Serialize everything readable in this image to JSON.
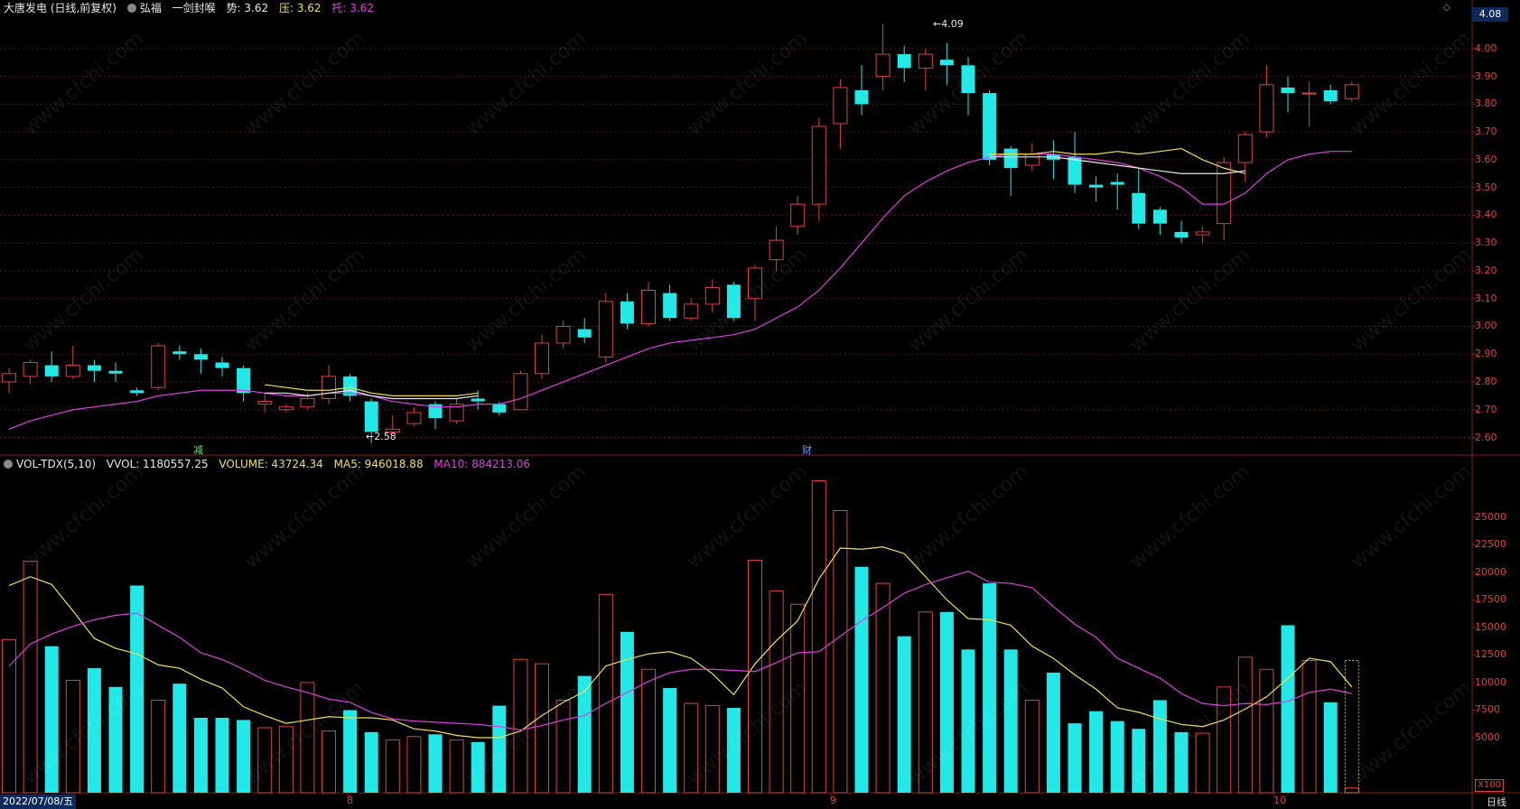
{
  "header": {
    "stock": "大唐发电 (日线,前复权)",
    "indicator": "弘福",
    "signal": "一剑封喉",
    "trend_label": "势:",
    "trend_value": "3.62",
    "pressure_label": "压:",
    "pressure_value": "3.62",
    "support_label": "托:",
    "support_value": "3.62"
  },
  "price_panel": {
    "current_price": "4.08",
    "y_labels": [
      "4.00",
      "3.90",
      "3.80",
      "3.70",
      "3.60",
      "3.50",
      "3.40",
      "3.30",
      "3.20",
      "3.10",
      "3.00",
      "2.90",
      "2.80",
      "2.70",
      "2.60"
    ],
    "high_marker": "4.09",
    "low_marker": "2.58",
    "event_tags": [
      "减",
      "财"
    ]
  },
  "volume_panel": {
    "indicator": "VOL-TDX(5,10)",
    "vvol": "VVOL: 1180557.25",
    "volume": "VOLUME: 43724.34",
    "ma5": "MA5: 946018.88",
    "ma10": "MA10: 884213.06",
    "y_labels": [
      "25000",
      "22500",
      "20000",
      "17500",
      "15000",
      "12500",
      "10000",
      "7500",
      "5000"
    ],
    "multiplier": "X100"
  },
  "x_axis": {
    "date": "2022/07/08/五",
    "months": [
      "8",
      "9",
      "10"
    ],
    "period": "日线"
  },
  "watermark": "www.cfchi.com",
  "colors": {
    "up": "#e0413b",
    "down": "#22e8e8",
    "ma_slow": "#e23de0",
    "ma_fast": "#f2e14a",
    "ma_white": "#e8e8e8"
  },
  "chart_data": {
    "type": "candlestick",
    "price_range": [
      2.54,
      4.11
    ],
    "volume_range": [
      0,
      29000
    ],
    "candles": [
      {
        "o": 2.8,
        "c": 2.83,
        "h": 2.85,
        "l": 2.76,
        "v": 13900
      },
      {
        "o": 2.82,
        "c": 2.87,
        "h": 2.88,
        "l": 2.79,
        "v": 21000
      },
      {
        "o": 2.86,
        "c": 2.82,
        "h": 2.91,
        "l": 2.8,
        "v": 13300
      },
      {
        "o": 2.82,
        "c": 2.86,
        "h": 2.93,
        "l": 2.81,
        "v": 10200
      },
      {
        "o": 2.86,
        "c": 2.84,
        "h": 2.88,
        "l": 2.8,
        "v": 11300
      },
      {
        "o": 2.84,
        "c": 2.83,
        "h": 2.87,
        "l": 2.8,
        "v": 9600
      },
      {
        "o": 2.77,
        "c": 2.76,
        "h": 2.78,
        "l": 2.75,
        "v": 18800
      },
      {
        "o": 2.78,
        "c": 2.93,
        "h": 2.94,
        "l": 2.77,
        "v": 8400
      },
      {
        "o": 2.91,
        "c": 2.9,
        "h": 2.93,
        "l": 2.88,
        "v": 9900
      },
      {
        "o": 2.9,
        "c": 2.88,
        "h": 2.92,
        "l": 2.83,
        "v": 6800
      },
      {
        "o": 2.87,
        "c": 2.85,
        "h": 2.89,
        "l": 2.82,
        "v": 6800
      },
      {
        "o": 2.85,
        "c": 2.76,
        "h": 2.86,
        "l": 2.73,
        "v": 6600
      },
      {
        "o": 2.72,
        "c": 2.73,
        "h": 2.76,
        "l": 2.69,
        "v": 5900
      },
      {
        "o": 2.7,
        "c": 2.71,
        "h": 2.72,
        "l": 2.69,
        "v": 6000
      },
      {
        "o": 2.71,
        "c": 2.74,
        "h": 2.76,
        "l": 2.7,
        "v": 10000
      },
      {
        "o": 2.74,
        "c": 2.82,
        "h": 2.86,
        "l": 2.72,
        "v": 5600
      },
      {
        "o": 2.82,
        "c": 2.75,
        "h": 2.83,
        "l": 2.73,
        "v": 7500
      },
      {
        "o": 2.73,
        "c": 2.62,
        "h": 2.74,
        "l": 2.58,
        "v": 5500
      },
      {
        "o": 2.62,
        "c": 2.63,
        "h": 2.68,
        "l": 2.61,
        "v": 4800
      },
      {
        "o": 2.65,
        "c": 2.69,
        "h": 2.71,
        "l": 2.64,
        "v": 5100
      },
      {
        "o": 2.72,
        "c": 2.67,
        "h": 2.73,
        "l": 2.63,
        "v": 5300
      },
      {
        "o": 2.66,
        "c": 2.72,
        "h": 2.74,
        "l": 2.65,
        "v": 4800
      },
      {
        "o": 2.74,
        "c": 2.73,
        "h": 2.77,
        "l": 2.7,
        "v": 4600
      },
      {
        "o": 2.72,
        "c": 2.69,
        "h": 2.73,
        "l": 2.68,
        "v": 7900
      },
      {
        "o": 2.7,
        "c": 2.83,
        "h": 2.84,
        "l": 2.7,
        "v": 12100
      },
      {
        "o": 2.83,
        "c": 2.94,
        "h": 2.97,
        "l": 2.81,
        "v": 11700
      },
      {
        "o": 2.94,
        "c": 3.0,
        "h": 3.02,
        "l": 2.92,
        "v": 8400
      },
      {
        "o": 2.99,
        "c": 2.96,
        "h": 3.03,
        "l": 2.94,
        "v": 10600
      },
      {
        "o": 2.89,
        "c": 3.09,
        "h": 3.12,
        "l": 2.87,
        "v": 18000
      },
      {
        "o": 3.09,
        "c": 3.01,
        "h": 3.12,
        "l": 2.99,
        "v": 14600
      },
      {
        "o": 3.01,
        "c": 3.13,
        "h": 3.16,
        "l": 3.0,
        "v": 11200
      },
      {
        "o": 3.12,
        "c": 3.03,
        "h": 3.15,
        "l": 3.02,
        "v": 9500
      },
      {
        "o": 3.03,
        "c": 3.08,
        "h": 3.1,
        "l": 3.02,
        "v": 8100
      },
      {
        "o": 3.08,
        "c": 3.14,
        "h": 3.17,
        "l": 3.05,
        "v": 7900
      },
      {
        "o": 3.15,
        "c": 3.03,
        "h": 3.16,
        "l": 3.02,
        "v": 7700
      },
      {
        "o": 3.1,
        "c": 3.21,
        "h": 3.22,
        "l": 3.02,
        "v": 21100
      },
      {
        "o": 3.24,
        "c": 3.31,
        "h": 3.36,
        "l": 3.2,
        "v": 18300
      },
      {
        "o": 3.36,
        "c": 3.44,
        "h": 3.47,
        "l": 3.33,
        "v": 17100
      },
      {
        "o": 3.44,
        "c": 3.72,
        "h": 3.75,
        "l": 3.38,
        "v": 28300
      },
      {
        "o": 3.73,
        "c": 3.86,
        "h": 3.89,
        "l": 3.64,
        "v": 25600
      },
      {
        "o": 3.85,
        "c": 3.8,
        "h": 3.94,
        "l": 3.76,
        "v": 20500
      },
      {
        "o": 3.9,
        "c": 3.98,
        "h": 4.09,
        "l": 3.85,
        "v": 19000
      },
      {
        "o": 3.98,
        "c": 3.93,
        "h": 4.01,
        "l": 3.88,
        "v": 14200
      },
      {
        "o": 3.93,
        "c": 3.98,
        "h": 4.0,
        "l": 3.85,
        "v": 16400
      },
      {
        "o": 3.96,
        "c": 3.94,
        "h": 4.02,
        "l": 3.87,
        "v": 16400
      },
      {
        "o": 3.94,
        "c": 3.84,
        "h": 3.97,
        "l": 3.76,
        "v": 13000
      },
      {
        "o": 3.84,
        "c": 3.6,
        "h": 3.85,
        "l": 3.58,
        "v": 19000
      },
      {
        "o": 3.64,
        "c": 3.57,
        "h": 3.65,
        "l": 3.47,
        "v": 13000
      },
      {
        "o": 3.58,
        "c": 3.62,
        "h": 3.66,
        "l": 3.56,
        "v": 8400
      },
      {
        "o": 3.62,
        "c": 3.6,
        "h": 3.67,
        "l": 3.53,
        "v": 10900
      },
      {
        "o": 3.61,
        "c": 3.51,
        "h": 3.7,
        "l": 3.48,
        "v": 6300
      },
      {
        "o": 3.51,
        "c": 3.5,
        "h": 3.54,
        "l": 3.45,
        "v": 7400
      },
      {
        "o": 3.52,
        "c": 3.51,
        "h": 3.55,
        "l": 3.42,
        "v": 6500
      },
      {
        "o": 3.48,
        "c": 3.37,
        "h": 3.57,
        "l": 3.35,
        "v": 5800
      },
      {
        "o": 3.42,
        "c": 3.37,
        "h": 3.43,
        "l": 3.33,
        "v": 8400
      },
      {
        "o": 3.34,
        "c": 3.32,
        "h": 3.38,
        "l": 3.3,
        "v": 5500
      },
      {
        "o": 3.33,
        "c": 3.34,
        "h": 3.36,
        "l": 3.3,
        "v": 5400
      },
      {
        "o": 3.37,
        "c": 3.59,
        "h": 3.61,
        "l": 3.31,
        "v": 9600
      },
      {
        "o": 3.59,
        "c": 3.69,
        "h": 3.7,
        "l": 3.52,
        "v": 12300
      },
      {
        "o": 3.7,
        "c": 3.87,
        "h": 3.94,
        "l": 3.68,
        "v": 11200
      },
      {
        "o": 3.86,
        "c": 3.84,
        "h": 3.9,
        "l": 3.77,
        "v": 15200
      },
      {
        "o": 3.84,
        "c": 3.84,
        "h": 3.88,
        "l": 3.72,
        "v": 12000
      },
      {
        "o": 3.85,
        "c": 3.81,
        "h": 3.87,
        "l": 3.8,
        "v": 8200
      },
      {
        "o": 3.82,
        "c": 3.87,
        "h": 3.88,
        "l": 3.81,
        "v": 437
      }
    ],
    "price_ma_slow": [
      2.63,
      2.66,
      2.68,
      2.7,
      2.71,
      2.72,
      2.73,
      2.75,
      2.76,
      2.77,
      2.77,
      2.77,
      2.76,
      2.75,
      2.75,
      2.76,
      2.76,
      2.75,
      2.73,
      2.72,
      2.71,
      2.71,
      2.72,
      2.72,
      2.74,
      2.77,
      2.8,
      2.83,
      2.86,
      2.89,
      2.92,
      2.94,
      2.95,
      2.96,
      2.97,
      2.99,
      3.03,
      3.07,
      3.13,
      3.21,
      3.3,
      3.39,
      3.47,
      3.52,
      3.56,
      3.59,
      3.61,
      3.62,
      3.62,
      3.62,
      3.61,
      3.6,
      3.59,
      3.57,
      3.54,
      3.5,
      3.44,
      3.44,
      3.48,
      3.55,
      3.6,
      3.62,
      3.63,
      3.63
    ],
    "price_ma_fast": [
      null,
      null,
      null,
      null,
      null,
      null,
      null,
      null,
      null,
      null,
      null,
      null,
      2.79,
      2.78,
      2.77,
      2.77,
      2.78,
      2.76,
      2.75,
      2.75,
      2.75,
      2.75,
      2.76,
      null,
      null,
      null,
      null,
      null,
      null,
      null,
      null,
      null,
      null,
      null,
      null,
      null,
      null,
      null,
      null,
      null,
      null,
      null,
      null,
      null,
      null,
      null,
      3.62,
      3.62,
      3.62,
      3.63,
      3.62,
      3.62,
      3.63,
      3.62,
      3.63,
      3.64,
      3.6,
      3.57,
      3.55,
      null,
      null,
      null,
      null,
      null
    ],
    "price_ma_white": [
      null,
      null,
      null,
      null,
      null,
      null,
      null,
      null,
      null,
      null,
      null,
      null,
      2.76,
      2.76,
      2.75,
      2.76,
      2.77,
      2.75,
      2.74,
      2.74,
      2.74,
      2.74,
      2.75,
      null,
      null,
      null,
      null,
      null,
      null,
      null,
      null,
      null,
      null,
      null,
      null,
      null,
      null,
      null,
      null,
      null,
      null,
      null,
      null,
      null,
      null,
      null,
      3.61,
      3.61,
      3.61,
      3.61,
      3.6,
      3.59,
      3.58,
      3.57,
      3.56,
      3.55,
      3.55,
      3.55,
      3.56,
      null,
      null,
      null,
      null,
      null
    ],
    "vol_ma5": [
      18800,
      19600,
      18900,
      16500,
      14000,
      13100,
      12600,
      11600,
      11300,
      10300,
      9500,
      7800,
      7000,
      6300,
      6600,
      6900,
      6800,
      6800,
      6600,
      5800,
      5600,
      5200,
      5000,
      5000,
      5600,
      7000,
      8200,
      9200,
      11500,
      12100,
      12600,
      12800,
      12200,
      10800,
      8900,
      11700,
      13800,
      15600,
      19400,
      22200,
      22100,
      22300,
      21700,
      19600,
      17500,
      15800,
      15700,
      15200,
      13300,
      12200,
      10700,
      9400,
      7700,
      7300,
      6700,
      6200,
      6000,
      6600,
      7600,
      8700,
      10400,
      12200,
      11900,
      9600
    ],
    "vol_ma10": [
      11500,
      13500,
      14400,
      15100,
      15700,
      16100,
      16300,
      15200,
      14100,
      12700,
      12100,
      11200,
      10200,
      9600,
      9100,
      8500,
      8200,
      7300,
      6700,
      6500,
      6400,
      6300,
      6200,
      6000,
      5700,
      6100,
      6600,
      7000,
      8100,
      9100,
      10100,
      10900,
      11200,
      11200,
      11100,
      11000,
      11800,
      12700,
      12800,
      14200,
      15600,
      16800,
      18100,
      18900,
      19500,
      20100,
      19100,
      19000,
      18600,
      16900,
      15300,
      14100,
      12200,
      11300,
      10400,
      9000,
      8100,
      7900,
      8100,
      8000,
      8300,
      9100,
      9400,
      9000
    ]
  }
}
